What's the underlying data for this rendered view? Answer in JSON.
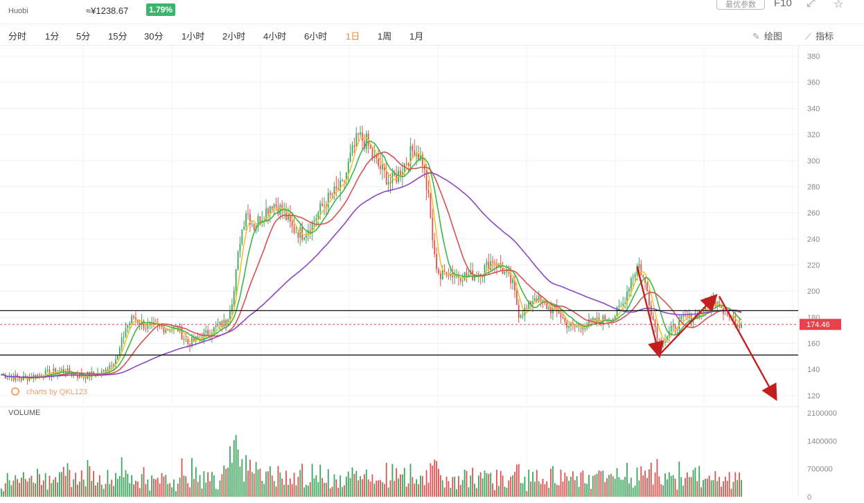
{
  "header": {
    "exchange": "Huobi",
    "cny_price": "≈¥1238.67",
    "change_pct": "1.79%",
    "opt_button": "最优参数",
    "f10_label": "F10"
  },
  "timeframes": [
    {
      "label": "分时",
      "active": false
    },
    {
      "label": "1分",
      "active": false
    },
    {
      "label": "5分",
      "active": false
    },
    {
      "label": "15分",
      "active": false
    },
    {
      "label": "30分",
      "active": false
    },
    {
      "label": "1小时",
      "active": false
    },
    {
      "label": "2小时",
      "active": false
    },
    {
      "label": "4小时",
      "active": false
    },
    {
      "label": "6小时",
      "active": false
    },
    {
      "label": "1日",
      "active": true
    },
    {
      "label": "1周",
      "active": false
    },
    {
      "label": "1月",
      "active": false
    }
  ],
  "tools": {
    "draw_label": "绘图",
    "indicator_label": "指标"
  },
  "colors": {
    "up": "#3ba55c",
    "down": "#d9534f",
    "ma_yellow": "#f2c230",
    "ma_green": "#3bb54a",
    "ma_red": "#d94f4f",
    "ma_purple": "#8a45c6",
    "arrow": "#c41f1f",
    "price_tag": "#e8434c"
  },
  "chart_data": {
    "type": "candlestick",
    "y_ticks": [
      120,
      140,
      160,
      180,
      200,
      220,
      240,
      260,
      280,
      300,
      320,
      340,
      360,
      380
    ],
    "ylim": [
      113,
      388
    ],
    "current_price": 174.46,
    "current_price_label": "174.46",
    "horizontal_levels": [
      185,
      151
    ],
    "watermark": "charts by QKL123",
    "volume_label": "VOLUME",
    "volume_ticks": [
      {
        "value": 0,
        "label": "0"
      },
      {
        "value": 700000,
        "label": "700000"
      },
      {
        "value": 1400000,
        "label": "1400000"
      },
      {
        "value": 2100000,
        "label": "2100000"
      }
    ],
    "volume_max": 2100000,
    "anchor_closes": [
      [
        0,
        136
      ],
      [
        10,
        133
      ],
      [
        20,
        136
      ],
      [
        30,
        139
      ],
      [
        40,
        135
      ],
      [
        50,
        137
      ],
      [
        58,
        150
      ],
      [
        62,
        172
      ],
      [
        66,
        180
      ],
      [
        72,
        173
      ],
      [
        80,
        172
      ],
      [
        88,
        171
      ],
      [
        93,
        160
      ],
      [
        98,
        163
      ],
      [
        103,
        168
      ],
      [
        108,
        173
      ],
      [
        112,
        176
      ],
      [
        116,
        200
      ],
      [
        119,
        240
      ],
      [
        122,
        262
      ],
      [
        126,
        250
      ],
      [
        130,
        258
      ],
      [
        135,
        268
      ],
      [
        140,
        262
      ],
      [
        145,
        248
      ],
      [
        150,
        244
      ],
      [
        155,
        252
      ],
      [
        160,
        265
      ],
      [
        165,
        274
      ],
      [
        170,
        280
      ],
      [
        174,
        302
      ],
      [
        178,
        318
      ],
      [
        182,
        314
      ],
      [
        186,
        300
      ],
      [
        190,
        292
      ],
      [
        194,
        283
      ],
      [
        198,
        290
      ],
      [
        202,
        300
      ],
      [
        206,
        310
      ],
      [
        210,
        300
      ],
      [
        213,
        270
      ],
      [
        216,
        225
      ],
      [
        219,
        210
      ],
      [
        222,
        216
      ],
      [
        226,
        212
      ],
      [
        230,
        212
      ],
      [
        235,
        212
      ],
      [
        240,
        216
      ],
      [
        245,
        224
      ],
      [
        250,
        216
      ],
      [
        255,
        205
      ],
      [
        258,
        183
      ],
      [
        262,
        186
      ],
      [
        266,
        196
      ],
      [
        270,
        190
      ],
      [
        274,
        186
      ],
      [
        278,
        184
      ],
      [
        281,
        176
      ],
      [
        285,
        172
      ],
      [
        290,
        174
      ],
      [
        295,
        176
      ],
      [
        300,
        178
      ],
      [
        305,
        180
      ],
      [
        310,
        190
      ],
      [
        314,
        210
      ],
      [
        318,
        220
      ],
      [
        322,
        200
      ],
      [
        325,
        178
      ],
      [
        328,
        162
      ],
      [
        331,
        164
      ],
      [
        335,
        172
      ],
      [
        340,
        178
      ],
      [
        345,
        180
      ],
      [
        350,
        186
      ],
      [
        354,
        190
      ],
      [
        357,
        194
      ],
      [
        360,
        186
      ],
      [
        363,
        180
      ],
      [
        366,
        176
      ],
      [
        369,
        174.46
      ]
    ],
    "candle_count": 370,
    "ma_periods": [
      5,
      10,
      20,
      60
    ],
    "annotations": [
      {
        "type": "arrow",
        "from": [
          317,
          219
        ],
        "to": [
          328,
          151
        ]
      },
      {
        "type": "arrow",
        "from": [
          328,
          151
        ],
        "to": [
          356,
          196
        ]
      },
      {
        "type": "arrow",
        "from": [
          358,
          196
        ],
        "to": [
          386,
          118
        ]
      }
    ]
  }
}
